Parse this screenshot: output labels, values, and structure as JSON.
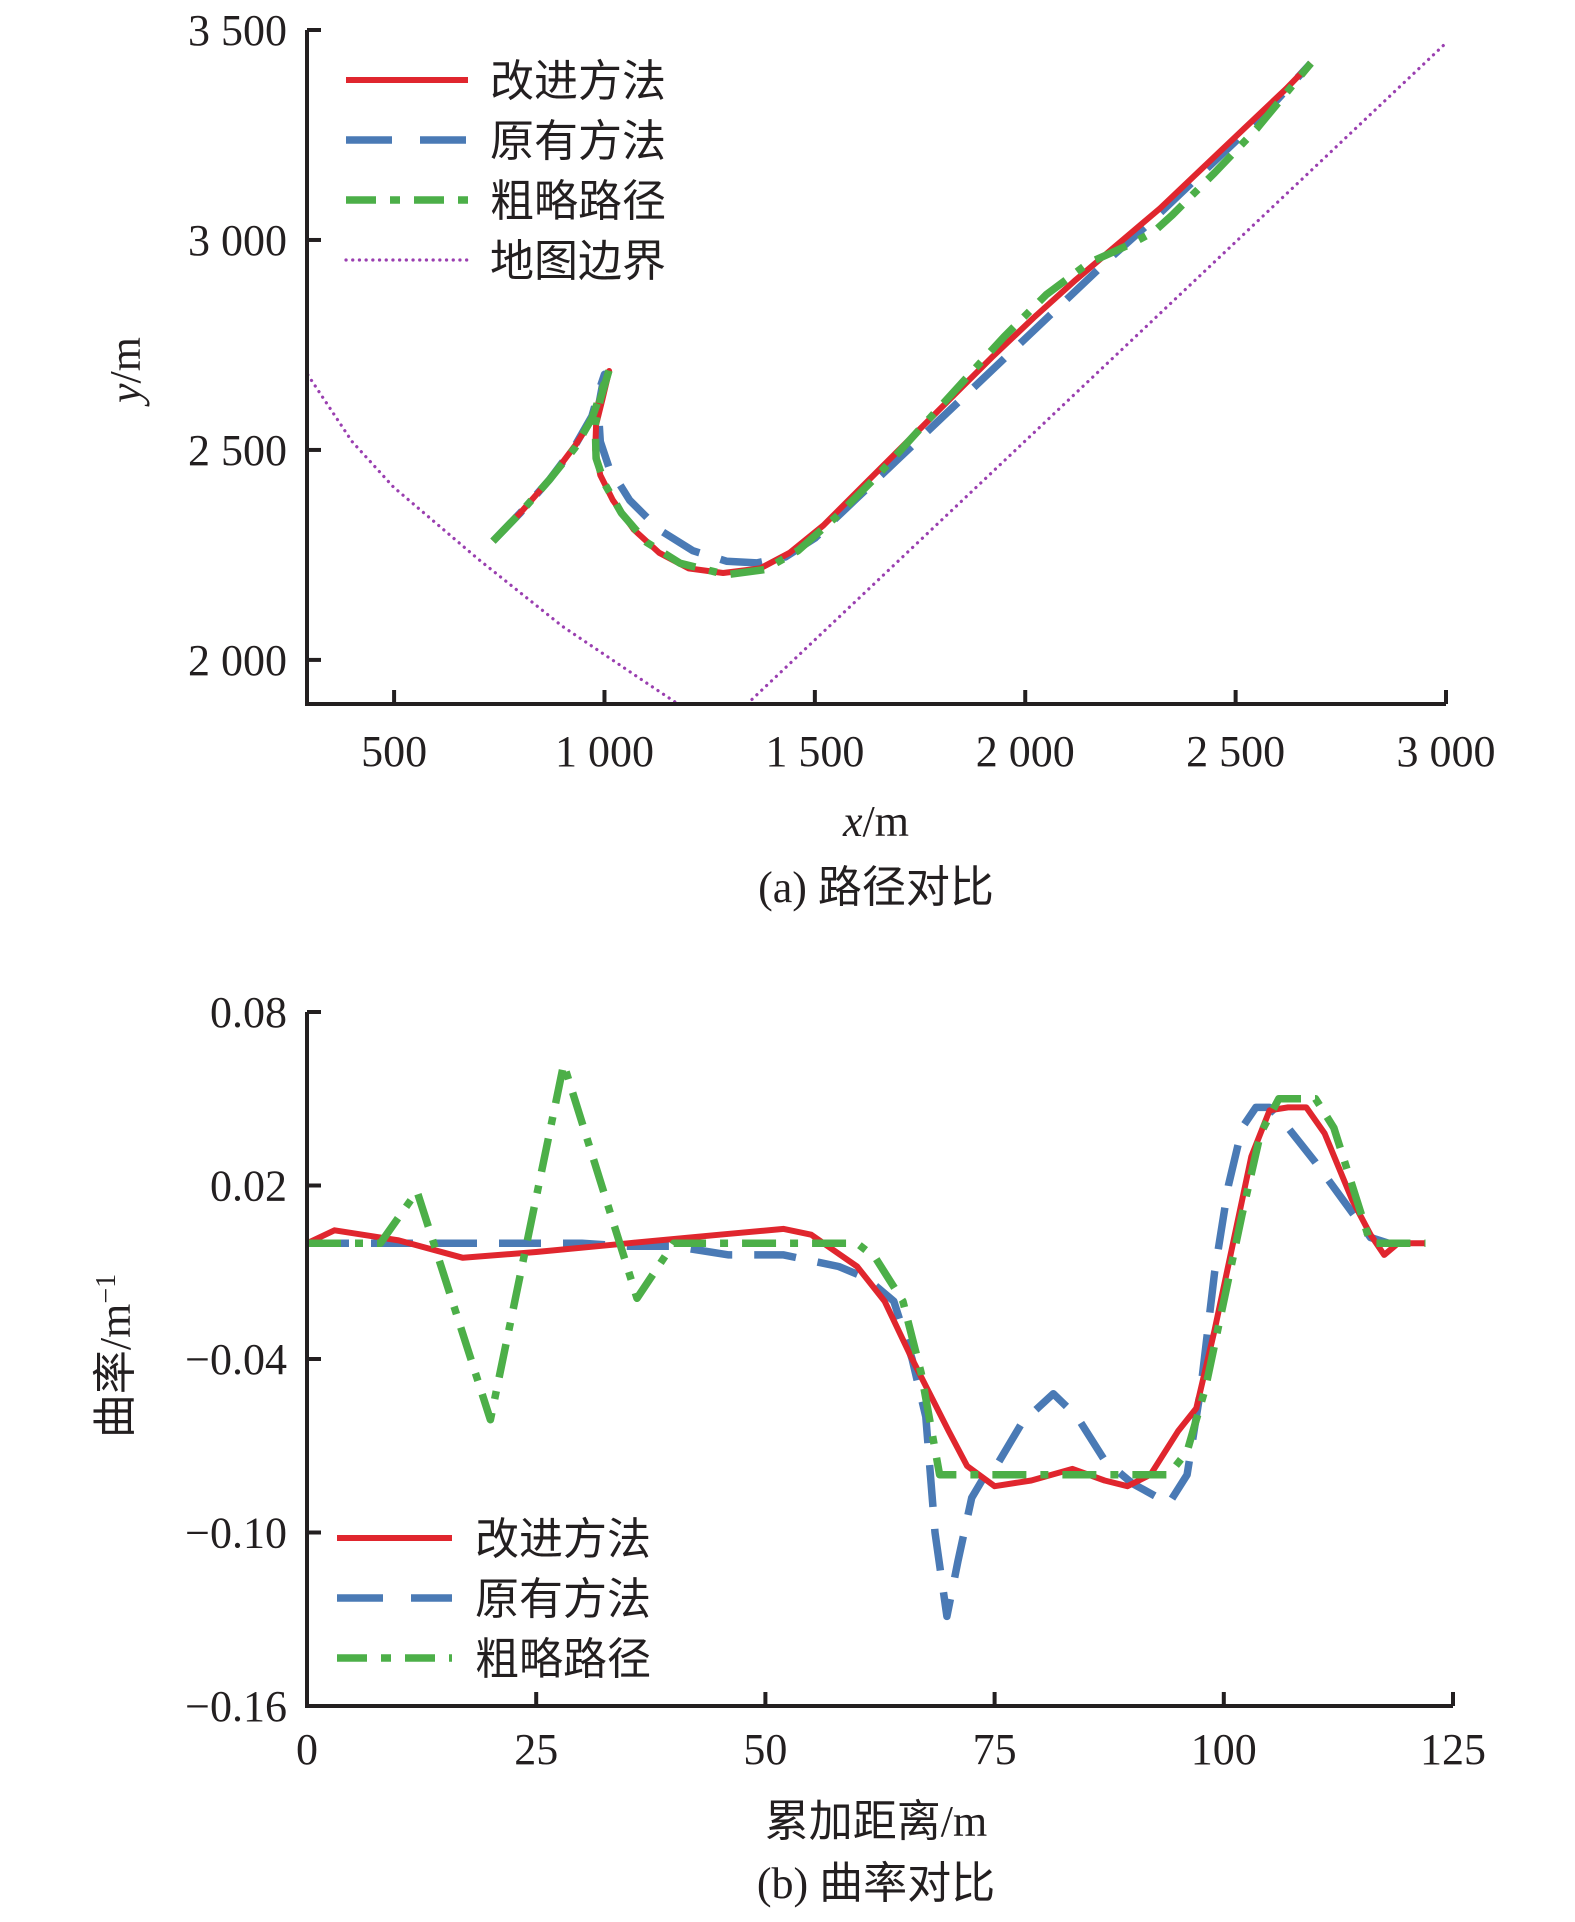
{
  "colors": {
    "improved": "#e0262e",
    "original": "#4a7ab5",
    "rough": "#4caf48",
    "boundary": "#9a3fb0",
    "axis": "#231f20"
  },
  "chart_data": [
    {
      "id": "a",
      "type": "line",
      "caption": "(a) 路径对比",
      "xlabel_italic": "x",
      "xlabel_unit": "/m",
      "ylabel_italic": "y",
      "ylabel_unit": "/m",
      "xlim": [
        293,
        3000
      ],
      "ylim": [
        1895,
        3500
      ],
      "x_ticks": [
        500,
        1000,
        1500,
        2000,
        2500,
        3000
      ],
      "x_tick_labels": [
        "500",
        "1 000",
        "1 500",
        "2 000",
        "2 500",
        "3 000"
      ],
      "y_ticks": [
        2000,
        2500,
        3000,
        3500
      ],
      "y_tick_labels": [
        "2 000",
        "2 500",
        "3 000",
        "3 500"
      ],
      "grid": false,
      "legend_position": "top-left",
      "legend": [
        "改进方法",
        "原有方法",
        "粗略路径",
        "地图边界"
      ],
      "series": [
        {
          "name": "改进方法",
          "style": "solid",
          "color_key": "improved",
          "points": [
            [
              735,
              2283
            ],
            [
              800,
              2350
            ],
            [
              870,
              2430
            ],
            [
              930,
              2510
            ],
            [
              975,
              2580
            ],
            [
              1011,
              2688
            ],
            [
              995,
              2620
            ],
            [
              980,
              2560
            ],
            [
              978,
              2500
            ],
            [
              990,
              2440
            ],
            [
              1020,
              2380
            ],
            [
              1070,
              2310
            ],
            [
              1130,
              2255
            ],
            [
              1200,
              2218
            ],
            [
              1282,
              2207
            ],
            [
              1370,
              2218
            ],
            [
              1440,
              2255
            ],
            [
              1520,
              2320
            ],
            [
              1620,
              2420
            ],
            [
              1720,
              2520
            ],
            [
              1820,
              2620
            ],
            [
              1920,
              2720
            ],
            [
              2020,
              2815
            ],
            [
              2120,
              2905
            ],
            [
              2220,
              2990
            ],
            [
              2320,
              3075
            ],
            [
              2420,
              3170
            ],
            [
              2520,
              3265
            ],
            [
              2620,
              3360
            ],
            [
              2679,
              3421
            ]
          ]
        },
        {
          "name": "原有方法",
          "style": "dashed",
          "color_key": "original",
          "points": [
            [
              735,
              2283
            ],
            [
              800,
              2350
            ],
            [
              870,
              2430
            ],
            [
              930,
              2510
            ],
            [
              970,
              2580
            ],
            [
              990,
              2650
            ],
            [
              1000,
              2680
            ],
            [
              985,
              2600
            ],
            [
              990,
              2520
            ],
            [
              1010,
              2460
            ],
            [
              1060,
              2380
            ],
            [
              1130,
              2310
            ],
            [
              1210,
              2260
            ],
            [
              1290,
              2235
            ],
            [
              1362,
              2231
            ],
            [
              1430,
              2245
            ],
            [
              1500,
              2290
            ],
            [
              1600,
              2385
            ],
            [
              1700,
              2480
            ],
            [
              1800,
              2575
            ],
            [
              1900,
              2670
            ],
            [
              2000,
              2765
            ],
            [
              2100,
              2860
            ],
            [
              2200,
              2955
            ],
            [
              2300,
              3045
            ],
            [
              2400,
              3140
            ],
            [
              2500,
              3235
            ],
            [
              2600,
              3335
            ],
            [
              2679,
              3421
            ]
          ]
        },
        {
          "name": "粗略路径",
          "style": "dashdot",
          "color_key": "rough",
          "points": [
            [
              735,
              2283
            ],
            [
              800,
              2350
            ],
            [
              870,
              2430
            ],
            [
              930,
              2505
            ],
            [
              970,
              2575
            ],
            [
              1011,
              2690
            ],
            [
              990,
              2620
            ],
            [
              978,
              2560
            ],
            [
              980,
              2480
            ],
            [
              1000,
              2420
            ],
            [
              1040,
              2350
            ],
            [
              1100,
              2280
            ],
            [
              1180,
              2230
            ],
            [
              1290,
              2203
            ],
            [
              1380,
              2215
            ],
            [
              1460,
              2260
            ],
            [
              1550,
              2340
            ],
            [
              1650,
              2440
            ],
            [
              1750,
              2550
            ],
            [
              1850,
              2660
            ],
            [
              1950,
              2770
            ],
            [
              2050,
              2870
            ],
            [
              2150,
              2945
            ],
            [
              2250,
              2990
            ],
            [
              2306,
              3020
            ],
            [
              2350,
              3060
            ],
            [
              2450,
              3160
            ],
            [
              2550,
              3265
            ],
            [
              2679,
              3421
            ]
          ]
        },
        {
          "name": "地图边界",
          "style": "dotted",
          "color_key": "boundary",
          "segments": [
            [
              [
                295,
                2679
              ],
              [
                400,
                2520
              ],
              [
                498,
                2412
              ],
              [
                700,
                2240
              ],
              [
                900,
                2080
              ],
              [
                1100,
                1945
              ],
              [
                1175,
                1895
              ]
            ],
            [
              [
                1339,
                1895
              ],
              [
                3002,
                3471
              ]
            ]
          ]
        }
      ]
    },
    {
      "id": "b",
      "type": "line",
      "caption": "(b) 曲率对比",
      "xlabel": "累加距离/m",
      "ylabel": "曲率/m",
      "ylabel_sup": "−1",
      "xlim": [
        0,
        125
      ],
      "ylim": [
        -0.16,
        0.08
      ],
      "x_ticks": [
        0,
        25,
        50,
        75,
        100,
        125
      ],
      "x_tick_labels": [
        "0",
        "25",
        "50",
        "75",
        "100",
        "125"
      ],
      "y_ticks": [
        -0.16,
        -0.1,
        -0.04,
        0.02,
        0.08
      ],
      "y_tick_labels": [
        "−0.16",
        "−0.10",
        "−0.04",
        "0.02",
        "0.08"
      ],
      "grid": false,
      "legend_position": "bottom-left",
      "legend": [
        "改进方法",
        "原有方法",
        "粗略路径"
      ],
      "series": [
        {
          "name": "改进方法",
          "style": "solid",
          "color_key": "improved",
          "points": [
            [
              0,
              0
            ],
            [
              3,
              0.0045
            ],
            [
              10,
              0.001
            ],
            [
              17,
              -0.005
            ],
            [
              25,
              -0.003
            ],
            [
              35,
              0
            ],
            [
              45,
              0.003
            ],
            [
              52,
              0.005
            ],
            [
              55,
              0.003
            ],
            [
              60,
              -0.008
            ],
            [
              63,
              -0.02
            ],
            [
              66,
              -0.04
            ],
            [
              70,
              -0.065
            ],
            [
              72,
              -0.077
            ],
            [
              75,
              -0.084
            ],
            [
              79,
              -0.082
            ],
            [
              83.5,
              -0.078
            ],
            [
              87,
              -0.082
            ],
            [
              89.5,
              -0.084
            ],
            [
              92,
              -0.08
            ],
            [
              95,
              -0.065
            ],
            [
              97,
              -0.057
            ],
            [
              99,
              -0.03
            ],
            [
              101,
              0.0
            ],
            [
              103,
              0.03
            ],
            [
              105,
              0.046
            ],
            [
              107,
              0.047
            ],
            [
              109,
              0.047
            ],
            [
              111,
              0.038
            ],
            [
              114,
              0.015
            ],
            [
              116,
              0.003
            ],
            [
              117.5,
              -0.004
            ],
            [
              119,
              0
            ],
            [
              122,
              0
            ]
          ]
        },
        {
          "name": "原有方法",
          "style": "dashed",
          "color_key": "original",
          "points": [
            [
              0,
              0
            ],
            [
              10,
              0
            ],
            [
              20,
              0
            ],
            [
              30,
              0
            ],
            [
              35,
              -0.001
            ],
            [
              40,
              -0.001
            ],
            [
              46,
              -0.004
            ],
            [
              52,
              -0.004
            ],
            [
              58,
              -0.008
            ],
            [
              61,
              -0.012
            ],
            [
              64,
              -0.02
            ],
            [
              66,
              -0.04
            ],
            [
              67.5,
              -0.06
            ],
            [
              68.5,
              -0.1
            ],
            [
              69.8,
              -0.129
            ],
            [
              71,
              -0.11
            ],
            [
              72.5,
              -0.088
            ],
            [
              74,
              -0.08
            ],
            [
              75,
              -0.078
            ],
            [
              78,
              -0.062
            ],
            [
              81.4,
              -0.052
            ],
            [
              84,
              -0.06
            ],
            [
              87,
              -0.075
            ],
            [
              90,
              -0.083
            ],
            [
              94,
              -0.09
            ],
            [
              96,
              -0.08
            ],
            [
              97.5,
              -0.05
            ],
            [
              99,
              -0.01
            ],
            [
              100.5,
              0.02
            ],
            [
              102,
              0.04
            ],
            [
              103.5,
              0.047
            ],
            [
              105,
              0.047
            ],
            [
              107,
              0.04
            ],
            [
              110,
              0.028
            ],
            [
              113,
              0.015
            ],
            [
              116,
              0.002
            ],
            [
              118,
              0
            ],
            [
              122,
              0
            ]
          ]
        },
        {
          "name": "粗略路径",
          "style": "dashdot",
          "color_key": "rough",
          "points": [
            [
              0,
              0
            ],
            [
              8,
              0
            ],
            [
              12,
              0.018
            ],
            [
              20,
              -0.061
            ],
            [
              28,
              0.062
            ],
            [
              36,
              -0.019
            ],
            [
              40,
              0
            ],
            [
              50,
              0
            ],
            [
              60,
              0
            ],
            [
              62,
              -0.005
            ],
            [
              65,
              -0.02
            ],
            [
              67,
              -0.045
            ],
            [
              69,
              -0.08
            ],
            [
              75,
              -0.08
            ],
            [
              80,
              -0.08
            ],
            [
              85,
              -0.08
            ],
            [
              90,
              -0.08
            ],
            [
              94,
              -0.08
            ],
            [
              96,
              -0.072
            ],
            [
              98,
              -0.05
            ],
            [
              100,
              -0.02
            ],
            [
              102,
              0.01
            ],
            [
              104,
              0.038
            ],
            [
              106,
              0.05
            ],
            [
              110,
              0.05
            ],
            [
              112,
              0.04
            ],
            [
              114,
              0.02
            ],
            [
              116,
              0
            ],
            [
              122,
              0
            ]
          ]
        }
      ]
    }
  ]
}
